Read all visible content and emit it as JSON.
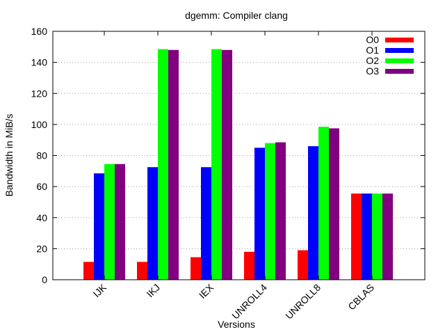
{
  "chart_data": {
    "type": "bar",
    "title": "dgemm: Compiler clang",
    "xlabel": "Versions",
    "ylabel": "Bandwidth in MiB/s",
    "ylim": [
      0,
      160
    ],
    "yticks": [
      0,
      20,
      40,
      60,
      80,
      100,
      120,
      140,
      160
    ],
    "grid": true,
    "legend_position": "top-right",
    "categories": [
      "IJK",
      "IKJ",
      "IEX",
      "UNROLL4",
      "UNROLL8",
      "CBLAS"
    ],
    "series": [
      {
        "name": "O0",
        "color": "#ff0000",
        "values": [
          11.5,
          11.5,
          14.5,
          18,
          19,
          55.5
        ]
      },
      {
        "name": "O1",
        "color": "#0000ff",
        "values": [
          68.5,
          72.5,
          72.5,
          85,
          86,
          55.5
        ]
      },
      {
        "name": "O2",
        "color": "#00ff00",
        "values": [
          74.5,
          148.5,
          148.5,
          88,
          98.5,
          55.5
        ]
      },
      {
        "name": "O3",
        "color": "#800080",
        "values": [
          74.5,
          148,
          148,
          88.5,
          97.5,
          55.5
        ]
      }
    ]
  }
}
